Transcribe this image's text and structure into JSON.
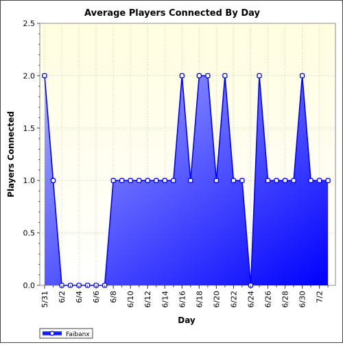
{
  "chart_data": {
    "type": "area",
    "title": "Average Players Connected By Day",
    "xlabel": "Day",
    "ylabel": "Players Connected",
    "ylim": [
      0,
      2.5
    ],
    "yticks": [
      "0.0",
      "0.5",
      "1.0",
      "1.5",
      "2.0",
      "2.5"
    ],
    "xticks": [
      "5/31",
      "6/2",
      "6/4",
      "6/6",
      "6/8",
      "6/10",
      "6/12",
      "6/14",
      "6/16",
      "6/18",
      "6/20",
      "6/22",
      "6/24",
      "6/26",
      "6/28",
      "6/30",
      "7/2"
    ],
    "x": [
      "5/31",
      "6/1",
      "6/2",
      "6/3",
      "6/4",
      "6/5",
      "6/6",
      "6/7",
      "6/8",
      "6/9",
      "6/10",
      "6/11",
      "6/12",
      "6/13",
      "6/14",
      "6/15",
      "6/16",
      "6/17",
      "6/18",
      "6/19",
      "6/20",
      "6/21",
      "6/22",
      "6/23",
      "6/24",
      "6/25",
      "6/26",
      "6/27",
      "6/28",
      "6/29",
      "6/30",
      "7/1",
      "7/2",
      "7/3"
    ],
    "series": [
      {
        "name": "Faibanx",
        "values": [
          2,
          1,
          0,
          0,
          0,
          0,
          0,
          0,
          1,
          1,
          1,
          1,
          1,
          1,
          1,
          1,
          2,
          1,
          2,
          2,
          1,
          2,
          1,
          1,
          0,
          2,
          1,
          1,
          1,
          1,
          2,
          1,
          1,
          1
        ],
        "color": "#0000ff"
      }
    ],
    "grid": true,
    "legend": "bottom-left",
    "plot_background": "#fffee0",
    "fill_gradient": [
      "#aab0ff",
      "#0000ff"
    ]
  }
}
